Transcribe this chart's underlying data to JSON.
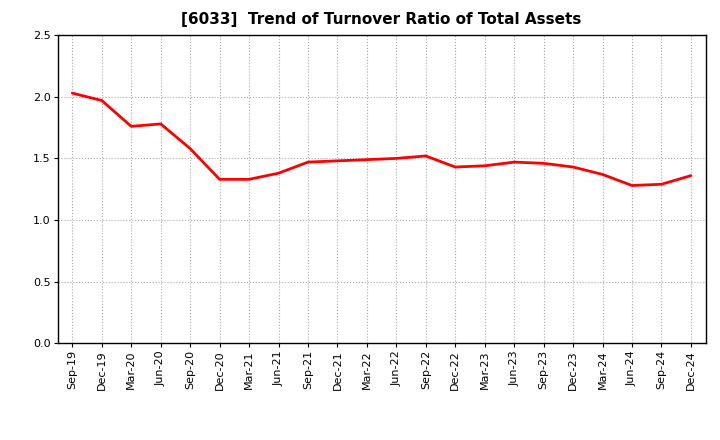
{
  "title": "[6033]  Trend of Turnover Ratio of Total Assets",
  "x_labels": [
    "Sep-19",
    "Dec-19",
    "Mar-20",
    "Jun-20",
    "Sep-20",
    "Dec-20",
    "Mar-21",
    "Jun-21",
    "Sep-21",
    "Dec-21",
    "Mar-22",
    "Jun-22",
    "Sep-22",
    "Dec-22",
    "Mar-23",
    "Jun-23",
    "Sep-23",
    "Dec-23",
    "Mar-24",
    "Jun-24",
    "Sep-24",
    "Dec-24"
  ],
  "y_values": [
    2.03,
    1.97,
    1.76,
    1.78,
    1.58,
    1.33,
    1.33,
    1.38,
    1.47,
    1.48,
    1.49,
    1.5,
    1.52,
    1.43,
    1.44,
    1.47,
    1.46,
    1.43,
    1.37,
    1.28,
    1.29,
    1.36
  ],
  "line_color": "#FF0000",
  "line_width": 2.0,
  "ylim": [
    0.0,
    2.5
  ],
  "yticks": [
    0.0,
    0.5,
    1.0,
    1.5,
    2.0,
    2.5
  ],
  "background_color": "#ffffff",
  "plot_bg_color": "#ffffff",
  "grid_color": "#aaaaaa",
  "title_fontsize": 11,
  "tick_fontsize": 8,
  "title_color": "#000000"
}
